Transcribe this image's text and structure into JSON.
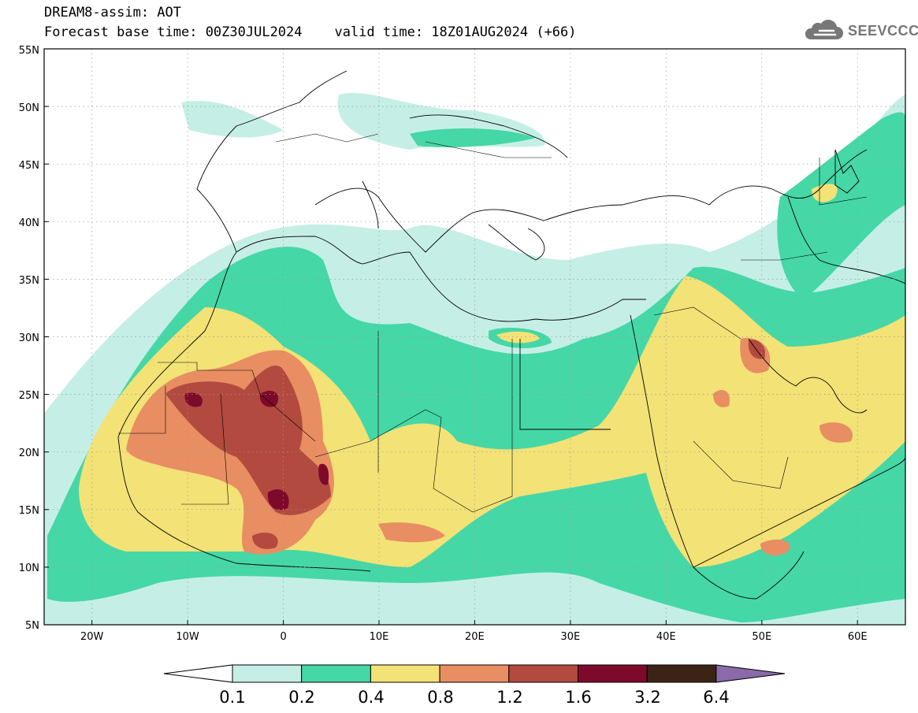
{
  "header": {
    "title": "DREAM8-assim: AOT",
    "subtitle_base": "Forecast base time: 00Z30JUL2024",
    "subtitle_valid": "valid time: 18Z01AUG2024 (+66)"
  },
  "logo": {
    "text": "SEEVCCC",
    "icon": "cloud-icon"
  },
  "map": {
    "lon_range": [
      -25,
      65
    ],
    "lat_range": [
      5,
      55
    ],
    "lat_ticks": [
      "5N",
      "10N",
      "15N",
      "20N",
      "25N",
      "30N",
      "35N",
      "40N",
      "45N",
      "50N",
      "55N"
    ],
    "lon_ticks": [
      "20W",
      "10W",
      "0",
      "10E",
      "20E",
      "30E",
      "40E",
      "50E",
      "60E"
    ],
    "gridlines": "dotted"
  },
  "colorbar": {
    "labels": [
      "0.1",
      "0.2",
      "0.4",
      "0.8",
      "1.2",
      "1.6",
      "3.2",
      "6.4"
    ],
    "colors": [
      "#ffffff",
      "#c5efe6",
      "#46d7a6",
      "#f3e276",
      "#e88e62",
      "#b24a3f",
      "#7d0a2a",
      "#3b2416",
      "#8a6aa8"
    ]
  }
}
